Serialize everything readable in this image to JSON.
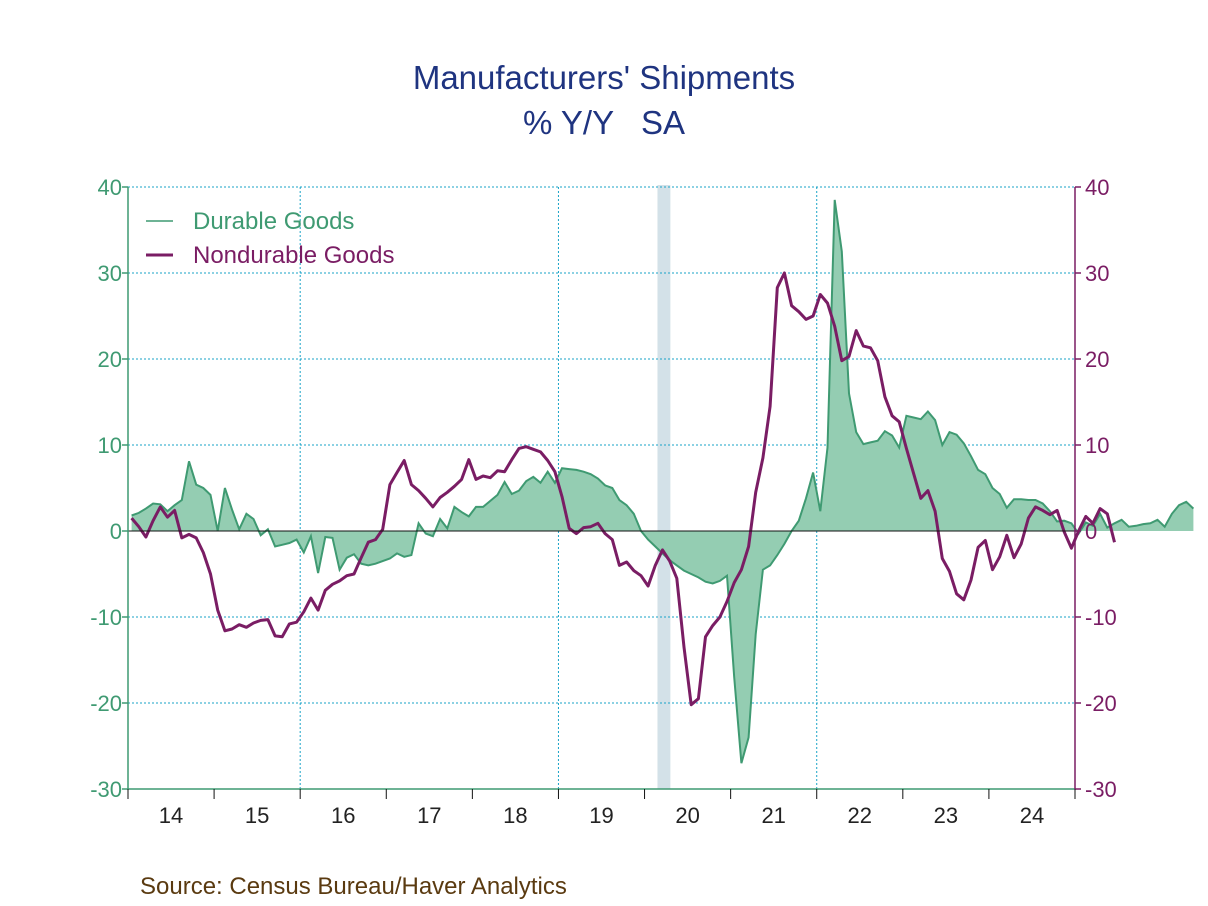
{
  "chart_data": {
    "type": "area+line",
    "title": "Manufacturers' Shipments",
    "subtitle": "% Y/Y   SA",
    "source": "Source: Census Bureau/Haver Analytics",
    "x_start": "2014-01",
    "x_end": "2024-12",
    "xlim": [
      2014.0,
      2025.0
    ],
    "ylim": [
      -30,
      40
    ],
    "yticks": [
      -30,
      -20,
      -10,
      0,
      10,
      20,
      30,
      40
    ],
    "ytick_labels": [
      "-30",
      "-20",
      "-10",
      "0",
      "10",
      "20",
      "30",
      "40"
    ],
    "xtick_labels": [
      "14",
      "15",
      "16",
      "17",
      "18",
      "19",
      "20",
      "21",
      "22",
      "23",
      "24"
    ],
    "grid": true,
    "legend_position": "top-left",
    "recession_shading": [
      {
        "start": 2020.15,
        "end": 2020.3,
        "color": "#d3e1e8"
      }
    ],
    "colors": {
      "durable_line": "#3f9a72",
      "durable_fill": "#94cdb2",
      "nondurable": "#7a1d64",
      "left_axis": "#3f9a72",
      "right_axis": "#7a1d64",
      "grid": "#1aa3c7",
      "title": "#1f3480",
      "source": "#5a3a10"
    },
    "series": [
      {
        "name": "Durable Goods",
        "style": "area",
        "values": [
          1.8,
          2.1,
          2.6,
          3.2,
          3.1,
          2.3,
          3.0,
          3.6,
          8.1,
          5.4,
          5.0,
          4.2,
          0.0,
          5.0,
          2.5,
          0.2,
          2.0,
          1.4,
          -0.5,
          0.2,
          -1.8,
          -1.6,
          -1.4,
          -1.0,
          -2.5,
          -0.6,
          -4.9,
          -0.7,
          -0.8,
          -4.5,
          -3.1,
          -2.7,
          -3.8,
          -4.0,
          -3.8,
          -3.5,
          -3.2,
          -2.6,
          -3.0,
          -2.8,
          0.9,
          -0.3,
          -0.6,
          1.4,
          0.3,
          2.8,
          2.2,
          1.7,
          2.8,
          2.8,
          3.5,
          4.2,
          5.7,
          4.3,
          4.7,
          5.8,
          6.3,
          5.6,
          6.9,
          5.6,
          7.3,
          7.2,
          7.1,
          6.9,
          6.6,
          6.1,
          5.3,
          5.0,
          3.6,
          3.0,
          2.0,
          0.0,
          -1.0,
          -1.8,
          -2.6,
          -3.4,
          -4.0,
          -4.6,
          -5.0,
          -5.4,
          -5.9,
          -6.1,
          -5.8,
          -5.2,
          -17.0,
          -27.0,
          -24.0,
          -12.0,
          -4.5,
          -4.0,
          -2.8,
          -1.5,
          0.0,
          1.2,
          3.8,
          6.8,
          2.3,
          9.7,
          38.5,
          32.5,
          16.0,
          11.5,
          10.1,
          10.3,
          10.5,
          11.6,
          11.1,
          9.7,
          13.4,
          13.2,
          13.0,
          13.9,
          12.9,
          10.0,
          11.5,
          11.2,
          10.2,
          8.7,
          7.1,
          6.6,
          5.0,
          4.3,
          2.7,
          3.7,
          3.7,
          3.6,
          3.6,
          3.2,
          2.3,
          1.1,
          1.2,
          0.9,
          -0.3,
          1.0,
          0.6,
          2.0,
          0.4,
          0.9,
          1.3,
          0.5,
          0.6,
          0.8,
          0.9,
          1.3,
          0.5,
          2.0,
          3.0,
          3.4,
          2.6
        ]
      },
      {
        "name": "Nondurable Goods",
        "style": "line",
        "values": [
          1.5,
          0.5,
          -0.7,
          1.2,
          2.8,
          1.6,
          2.4,
          -0.8,
          -0.4,
          -0.8,
          -2.5,
          -5.0,
          -9.2,
          -11.6,
          -11.4,
          -10.9,
          -11.2,
          -10.7,
          -10.4,
          -10.3,
          -12.2,
          -12.3,
          -10.8,
          -10.6,
          -9.4,
          -7.8,
          -9.2,
          -6.9,
          -6.2,
          -5.8,
          -5.2,
          -5.0,
          -3.1,
          -1.3,
          -1.0,
          0.2,
          5.4,
          6.8,
          8.2,
          5.4,
          4.7,
          3.8,
          2.8,
          3.9,
          4.5,
          5.2,
          6.0,
          8.3,
          6.0,
          6.4,
          6.2,
          7.0,
          6.9,
          8.3,
          9.6,
          9.8,
          9.5,
          9.2,
          8.2,
          6.9,
          4.0,
          0.3,
          -0.3,
          0.4,
          0.5,
          0.9,
          -0.3,
          -1.0,
          -4.0,
          -3.6,
          -4.6,
          -5.2,
          -6.4,
          -4.0,
          -2.2,
          -3.5,
          -5.5,
          -13.5,
          -20.2,
          -19.5,
          -12.3,
          -11.0,
          -10.0,
          -8.2,
          -6.0,
          -4.5,
          -1.8,
          4.5,
          8.5,
          14.5,
          28.3,
          30.0,
          26.2,
          25.5,
          24.6,
          25.0,
          27.5,
          26.5,
          23.8,
          19.8,
          20.3,
          23.3,
          21.5,
          21.3,
          19.8,
          15.6,
          13.4,
          12.7,
          9.6,
          6.7,
          3.8,
          4.7,
          2.3,
          -3.2,
          -4.7,
          -7.3,
          -8.0,
          -5.7,
          -1.9,
          -1.1,
          -4.5,
          -3.0,
          -0.5,
          -3.1,
          -1.5,
          1.5,
          2.8,
          2.4,
          1.9,
          2.4,
          -0.1,
          -2.0,
          0.0,
          1.7,
          0.9,
          2.6,
          2.0,
          -1.3
        ]
      }
    ]
  }
}
